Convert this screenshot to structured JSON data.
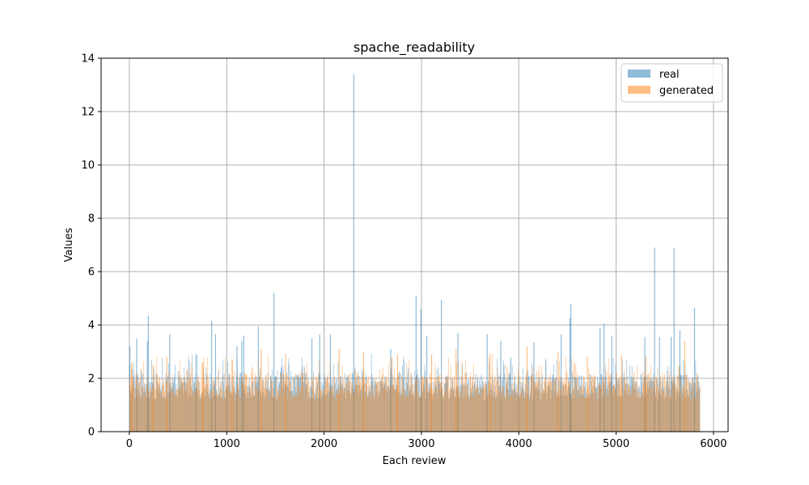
{
  "chart_data": {
    "type": "bar",
    "title": "spache_readability",
    "xlabel": "Each review",
    "ylabel": "Values",
    "xlim": [
      -290,
      6150
    ],
    "ylim": [
      0,
      14
    ],
    "xticks": [
      0,
      1000,
      2000,
      3000,
      4000,
      5000,
      6000
    ],
    "yticks": [
      0,
      2,
      4,
      6,
      8,
      10,
      12,
      14
    ],
    "grid": true,
    "legend_position": "top-right",
    "n_points": 5860,
    "series": [
      {
        "name": "real",
        "color": "#1f77b4",
        "opacity": 0.5,
        "baseline_range": [
          1.2,
          2.2
        ],
        "peaks": [
          {
            "x": 0,
            "y": 3.2
          },
          {
            "x": 70,
            "y": 3.5
          },
          {
            "x": 180,
            "y": 3.4
          },
          {
            "x": 190,
            "y": 4.35
          },
          {
            "x": 410,
            "y": 3.65
          },
          {
            "x": 680,
            "y": 2.9
          },
          {
            "x": 840,
            "y": 4.15
          },
          {
            "x": 880,
            "y": 3.65
          },
          {
            "x": 1100,
            "y": 3.2
          },
          {
            "x": 1150,
            "y": 3.4
          },
          {
            "x": 1170,
            "y": 3.6
          },
          {
            "x": 1320,
            "y": 3.95
          },
          {
            "x": 1480,
            "y": 5.2
          },
          {
            "x": 1870,
            "y": 3.5
          },
          {
            "x": 1950,
            "y": 3.65
          },
          {
            "x": 2060,
            "y": 3.65
          },
          {
            "x": 2300,
            "y": 13.4
          },
          {
            "x": 2680,
            "y": 3.1
          },
          {
            "x": 2940,
            "y": 5.1
          },
          {
            "x": 2990,
            "y": 4.6
          },
          {
            "x": 3050,
            "y": 3.6
          },
          {
            "x": 3200,
            "y": 4.95
          },
          {
            "x": 3370,
            "y": 3.7
          },
          {
            "x": 3670,
            "y": 3.65
          },
          {
            "x": 3810,
            "y": 3.4
          },
          {
            "x": 4150,
            "y": 3.35
          },
          {
            "x": 4430,
            "y": 3.65
          },
          {
            "x": 4520,
            "y": 4.25
          },
          {
            "x": 4530,
            "y": 4.8
          },
          {
            "x": 4830,
            "y": 3.9
          },
          {
            "x": 4870,
            "y": 4.05
          },
          {
            "x": 4950,
            "y": 3.6
          },
          {
            "x": 5290,
            "y": 3.55
          },
          {
            "x": 5390,
            "y": 6.9
          },
          {
            "x": 5440,
            "y": 3.55
          },
          {
            "x": 5560,
            "y": 3.55
          },
          {
            "x": 5590,
            "y": 6.9
          },
          {
            "x": 5650,
            "y": 3.8
          },
          {
            "x": 5800,
            "y": 4.65
          }
        ]
      },
      {
        "name": "generated",
        "color": "#ff7f0e",
        "opacity": 0.5,
        "baseline_range": [
          1.2,
          2.2
        ],
        "peaks": [
          {
            "x": 20,
            "y": 2.6
          },
          {
            "x": 240,
            "y": 2.5
          },
          {
            "x": 380,
            "y": 2.8
          },
          {
            "x": 750,
            "y": 2.6
          },
          {
            "x": 1050,
            "y": 2.7
          },
          {
            "x": 1350,
            "y": 3.1
          },
          {
            "x": 1600,
            "y": 2.9
          },
          {
            "x": 2150,
            "y": 3.1
          },
          {
            "x": 2400,
            "y": 3.0
          },
          {
            "x": 2750,
            "y": 2.9
          },
          {
            "x": 3100,
            "y": 2.9
          },
          {
            "x": 3350,
            "y": 3.1
          },
          {
            "x": 3700,
            "y": 2.9
          },
          {
            "x": 4080,
            "y": 3.2
          },
          {
            "x": 4400,
            "y": 3.0
          },
          {
            "x": 4700,
            "y": 2.8
          },
          {
            "x": 5050,
            "y": 2.9
          },
          {
            "x": 5300,
            "y": 2.8
          },
          {
            "x": 5700,
            "y": 3.4
          }
        ]
      }
    ]
  }
}
